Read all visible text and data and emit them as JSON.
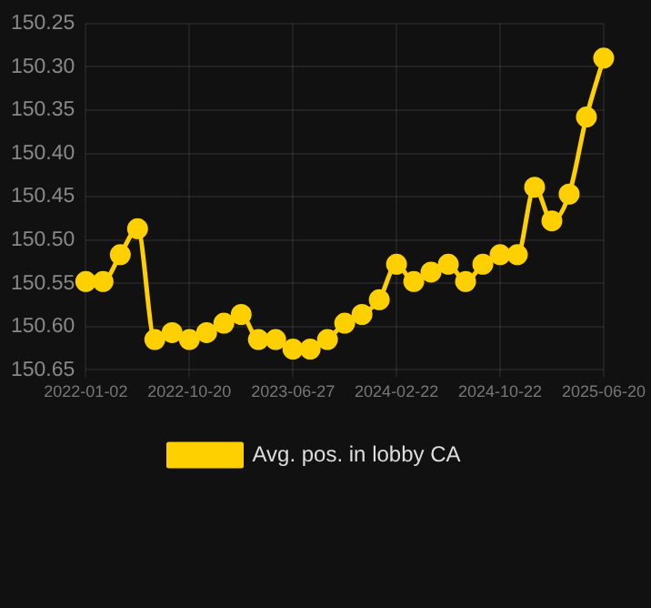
{
  "chart_data": {
    "type": "line",
    "categories": [
      "2022-01-02",
      null,
      null,
      null,
      null,
      null,
      "2022-10-20",
      null,
      null,
      null,
      null,
      null,
      "2023-06-27",
      null,
      null,
      null,
      null,
      null,
      "2024-02-22",
      null,
      null,
      null,
      null,
      null,
      "2024-10-22",
      null,
      null,
      null,
      null,
      null,
      "2025-06-20"
    ],
    "series": [
      {
        "name": "Avg. pos. in lobby CA",
        "color": "#ffd000",
        "values": [
          150.548,
          150.548,
          150.517,
          150.487,
          150.615,
          150.607,
          150.615,
          150.607,
          150.596,
          150.586,
          150.615,
          150.615,
          150.626,
          150.626,
          150.615,
          150.596,
          150.586,
          150.569,
          150.528,
          150.548,
          150.537,
          150.528,
          150.548,
          150.528,
          150.517,
          150.517,
          150.439,
          150.478,
          150.447,
          150.358,
          150.29
        ]
      }
    ],
    "ylim": [
      150.65,
      150.25
    ],
    "yticks": [
      150.25,
      {
        "value": 150.3,
        "label": "150.30"
      },
      150.35,
      {
        "value": 150.4,
        "label": "150.40"
      },
      150.45,
      {
        "value": 150.5,
        "label": "150.50"
      },
      150.55,
      {
        "value": 150.6,
        "label": "150.60"
      },
      150.65
    ],
    "grid": true,
    "legend": "bottom",
    "marker": "circle",
    "line_style": "solid"
  }
}
